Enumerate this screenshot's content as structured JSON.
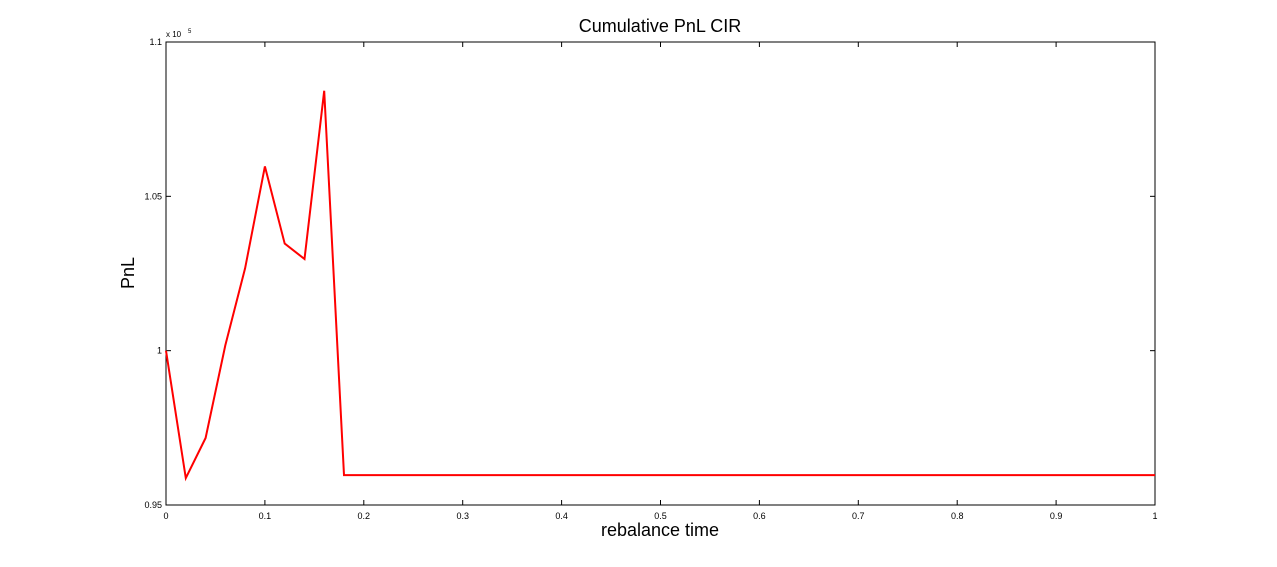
{
  "chart_data": {
    "type": "line",
    "title": "Cumulative PnL CIR",
    "xlabel": "rebalance time",
    "ylabel": "PnL",
    "y_multiplier_label": "x 10",
    "y_multiplier_exponent": "5",
    "xlim": [
      0,
      1
    ],
    "ylim": [
      0.95,
      1.1
    ],
    "grid": false,
    "x_ticks": [
      {
        "value": 0,
        "label": "0"
      },
      {
        "value": 0.1,
        "label": "0.1"
      },
      {
        "value": 0.2,
        "label": "0.2"
      },
      {
        "value": 0.3,
        "label": "0.3"
      },
      {
        "value": 0.4,
        "label": "0.4"
      },
      {
        "value": 0.5,
        "label": "0.5"
      },
      {
        "value": 0.6,
        "label": "0.6"
      },
      {
        "value": 0.7,
        "label": "0.7"
      },
      {
        "value": 0.8,
        "label": "0.8"
      },
      {
        "value": 0.9,
        "label": "0.9"
      },
      {
        "value": 1,
        "label": "1"
      }
    ],
    "y_ticks": [
      {
        "value": 0.95,
        "label": "0.95"
      },
      {
        "value": 1.0,
        "label": "1"
      },
      {
        "value": 1.05,
        "label": "1.05"
      },
      {
        "value": 1.1,
        "label": "1.1"
      }
    ],
    "series": [
      {
        "color": "#ff0000",
        "x": [
          0,
          0.02,
          0.04,
          0.06,
          0.08,
          0.1,
          0.12,
          0.14,
          0.16,
          0.18,
          1.0
        ],
        "y": [
          1.0,
          0.9587,
          0.9717,
          1.0017,
          1.0267,
          1.0597,
          1.0347,
          1.0297,
          1.0842,
          0.9597,
          0.9597
        ]
      }
    ]
  }
}
